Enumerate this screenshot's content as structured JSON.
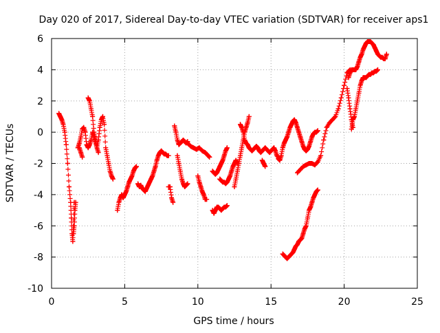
{
  "chart_data": {
    "type": "scatter",
    "title": "Day 020 of 2017, Sidereal Day-to-day VTEC variation (SDTVAR) for receiver aps1",
    "xlabel": "GPS time / hours",
    "ylabel": "SDTVAR / TECUs",
    "xlim": [
      0,
      25
    ],
    "ylim": [
      -10,
      6
    ],
    "xticks": [
      0,
      5,
      10,
      15,
      20,
      25
    ],
    "yticks": [
      -10,
      -8,
      -6,
      -4,
      -2,
      0,
      2,
      4,
      6
    ],
    "grid": true,
    "marker": "+",
    "color": "#ff0000",
    "series": [
      {
        "name": "s1",
        "x": [
          0.5,
          0.6,
          0.7,
          0.8,
          0.9,
          1.0,
          1.1,
          1.2,
          1.3,
          1.35,
          1.4,
          1.45,
          1.5,
          1.55
        ],
        "y": [
          1.2,
          1.0,
          0.8,
          0.5,
          0.0,
          -0.8,
          -2.0,
          -3.5,
          -4.5,
          -5.5,
          -6.5,
          -7.0,
          -6.0,
          -4.5
        ]
      },
      {
        "name": "s2",
        "x": [
          1.5,
          1.55,
          1.6,
          1.65
        ],
        "y": [
          -6.5,
          -6.0,
          -5.0,
          -4.5
        ]
      },
      {
        "name": "s3",
        "x": [
          1.8,
          1.9,
          2.0,
          2.1,
          2.2,
          2.3,
          2.4,
          2.5,
          2.6,
          2.7,
          2.8,
          2.9,
          3.0,
          3.1,
          3.2,
          3.3,
          3.4,
          3.5,
          3.6,
          3.7,
          3.8,
          3.9,
          4.0,
          4.1,
          4.2
        ],
        "y": [
          -1.0,
          -0.7,
          -0.3,
          0.2,
          0.3,
          0.0,
          -0.8,
          -1.0,
          -0.8,
          -0.5,
          0.0,
          -0.3,
          -0.6,
          -1.0,
          -0.5,
          0.3,
          0.8,
          1.0,
          0.5,
          -1.0,
          -1.5,
          -2.0,
          -2.5,
          -2.8,
          -3.0
        ]
      },
      {
        "name": "s4",
        "x": [
          1.9,
          2.0,
          2.1
        ],
        "y": [
          -1.0,
          -1.3,
          -1.6
        ]
      },
      {
        "name": "s5",
        "x": [
          2.5,
          2.6,
          2.7,
          2.8,
          2.9,
          3.0,
          3.1,
          3.2
        ],
        "y": [
          2.2,
          2.0,
          1.5,
          1.0,
          0.0,
          -0.5,
          -1.0,
          -1.3
        ]
      },
      {
        "name": "s6",
        "x": [
          4.5,
          4.6,
          4.7,
          4.8,
          4.9,
          5.0,
          5.1,
          5.2,
          5.3,
          5.4,
          5.5,
          5.6,
          5.7,
          5.8
        ],
        "y": [
          -5.0,
          -4.5,
          -4.2,
          -4.0,
          -4.2,
          -4.0,
          -3.8,
          -3.5,
          -3.2,
          -3.0,
          -2.8,
          -2.5,
          -2.3,
          -2.2
        ]
      },
      {
        "name": "s7",
        "x": [
          5.9,
          6.0,
          6.1,
          6.2,
          6.3,
          6.4,
          6.5,
          6.6,
          6.7,
          6.8,
          6.9,
          7.0,
          7.1,
          7.2,
          7.3,
          7.4,
          7.5,
          7.6,
          7.7,
          7.8,
          7.9,
          8.0
        ],
        "y": [
          -3.3,
          -3.5,
          -3.4,
          -3.6,
          -3.7,
          -3.8,
          -3.6,
          -3.4,
          -3.2,
          -3.0,
          -2.8,
          -2.5,
          -2.2,
          -1.8,
          -1.5,
          -1.3,
          -1.2,
          -1.3,
          -1.4,
          -1.4,
          -1.5,
          -1.5
        ]
      },
      {
        "name": "s8",
        "x": [
          8.0,
          8.1,
          8.2,
          8.3
        ],
        "y": [
          -3.5,
          -3.5,
          -4.2,
          -4.5
        ]
      },
      {
        "name": "s9",
        "x": [
          8.4,
          8.5,
          8.6,
          8.7,
          8.8,
          8.9,
          9.0,
          9.1,
          9.2,
          9.3
        ],
        "y": [
          0.4,
          0.0,
          -0.5,
          -0.8,
          -0.7,
          -0.6,
          -0.5,
          -0.6,
          -0.7,
          -0.6
        ]
      },
      {
        "name": "s10",
        "x": [
          8.6,
          8.7,
          8.8,
          8.9,
          9.0,
          9.1,
          9.2,
          9.3
        ],
        "y": [
          -1.5,
          -2.0,
          -2.5,
          -3.0,
          -3.3,
          -3.5,
          -3.4,
          -3.3
        ]
      },
      {
        "name": "s11",
        "x": [
          9.3,
          9.5,
          9.7,
          9.9,
          10.1,
          10.3,
          10.5,
          10.6,
          10.7,
          10.8
        ],
        "y": [
          -0.7,
          -0.9,
          -1.0,
          -1.1,
          -1.0,
          -1.2,
          -1.3,
          -1.4,
          -1.5,
          -1.6
        ]
      },
      {
        "name": "s12",
        "x": [
          10.0,
          10.1,
          10.2,
          10.3,
          10.4,
          10.5,
          10.6
        ],
        "y": [
          -2.8,
          -3.2,
          -3.5,
          -3.8,
          -4.0,
          -4.3,
          -4.3
        ]
      },
      {
        "name": "s13",
        "x": [
          11.0,
          11.1,
          11.2,
          11.3,
          11.4,
          11.5,
          11.6,
          11.7,
          11.8,
          11.9,
          12.0
        ],
        "y": [
          -5.0,
          -5.2,
          -5.0,
          -4.8,
          -4.8,
          -4.9,
          -5.0,
          -4.9,
          -4.8,
          -4.8,
          -4.7
        ]
      },
      {
        "name": "s14",
        "x": [
          11.5,
          11.6,
          11.7,
          11.8,
          11.9,
          12.0,
          12.1,
          12.2,
          12.3,
          12.4,
          12.5,
          12.6,
          12.7
        ],
        "y": [
          -3.0,
          -3.1,
          -3.2,
          -3.2,
          -3.3,
          -3.2,
          -3.0,
          -2.8,
          -2.5,
          -2.2,
          -2.0,
          -1.8,
          -2.0
        ]
      },
      {
        "name": "s15",
        "x": [
          11.0,
          11.1,
          11.2,
          11.3,
          11.4,
          11.5,
          11.6,
          11.7,
          11.8,
          11.9,
          12.0
        ],
        "y": [
          -2.5,
          -2.6,
          -2.7,
          -2.6,
          -2.4,
          -2.2,
          -2.0,
          -1.8,
          -1.5,
          -1.2,
          -1.0
        ]
      },
      {
        "name": "s16",
        "x": [
          12.5,
          12.6,
          12.7,
          12.8,
          12.9,
          13.0,
          13.1,
          13.2,
          13.3,
          13.4,
          13.5
        ],
        "y": [
          -3.5,
          -3.0,
          -2.5,
          -2.0,
          -1.5,
          -1.0,
          -0.5,
          0.0,
          0.3,
          0.6,
          1.0
        ]
      },
      {
        "name": "s17",
        "x": [
          12.9,
          13.0,
          13.1,
          13.2,
          13.3,
          13.4,
          13.5,
          13.6,
          13.7,
          13.8,
          13.9,
          14.0,
          14.1,
          14.2,
          14.3,
          14.4,
          14.5,
          14.6,
          14.7,
          14.8,
          14.9,
          15.0,
          15.1,
          15.2,
          15.3,
          15.4,
          15.5
        ],
        "y": [
          0.5,
          0.3,
          0.0,
          -0.5,
          -0.7,
          -0.8,
          -1.0,
          -1.1,
          -1.2,
          -1.1,
          -1.0,
          -0.9,
          -1.0,
          -1.2,
          -1.3,
          -1.2,
          -1.1,
          -1.0,
          -1.1,
          -1.2,
          -1.3,
          -1.2,
          -1.1,
          -1.0,
          -1.2,
          -1.5,
          -1.6
        ]
      },
      {
        "name": "s18",
        "x": [
          14.4,
          14.5,
          14.6
        ],
        "y": [
          -1.8,
          -2.0,
          -2.2
        ]
      },
      {
        "name": "s19",
        "x": [
          15.5,
          15.6,
          15.7,
          15.8,
          15.9,
          16.0,
          16.1,
          16.2,
          16.3,
          16.4,
          16.5,
          16.6,
          16.7,
          16.8,
          16.9,
          17.0,
          17.1,
          17.2,
          17.3,
          17.4,
          17.5,
          17.6,
          17.7,
          17.8,
          17.9,
          18.0,
          18.1,
          18.2
        ],
        "y": [
          -1.7,
          -1.8,
          -1.5,
          -1.0,
          -0.7,
          -0.5,
          -0.3,
          0.0,
          0.3,
          0.5,
          0.7,
          0.8,
          0.6,
          0.3,
          0.0,
          -0.3,
          -0.6,
          -0.9,
          -1.1,
          -1.2,
          -1.1,
          -0.9,
          -0.6,
          -0.3,
          -0.1,
          0.0,
          0.0,
          0.1
        ]
      },
      {
        "name": "s20",
        "x": [
          16.8,
          17.0,
          17.2,
          17.4,
          17.6,
          17.8,
          18.0,
          18.2,
          18.4,
          18.6,
          18.8,
          19.0,
          19.2,
          19.4,
          19.6,
          19.8,
          20.0,
          20.2,
          20.4
        ],
        "y": [
          -2.6,
          -2.4,
          -2.2,
          -2.1,
          -2.0,
          -2.0,
          -2.1,
          -1.9,
          -1.5,
          -0.5,
          0.3,
          0.6,
          0.8,
          1.0,
          1.5,
          2.2,
          3.0,
          3.8,
          4.0
        ]
      },
      {
        "name": "s21",
        "x": [
          15.8,
          15.9,
          16.0,
          16.1,
          16.2,
          16.3,
          16.4,
          16.5,
          16.6,
          16.7,
          16.8,
          16.9,
          17.0,
          17.1,
          17.2,
          17.3,
          17.4,
          17.5,
          17.6,
          17.7,
          17.8,
          17.9,
          18.0,
          18.1,
          18.2
        ],
        "y": [
          -7.8,
          -7.9,
          -8.0,
          -8.1,
          -8.0,
          -7.9,
          -7.8,
          -7.7,
          -7.5,
          -7.3,
          -7.2,
          -7.0,
          -6.9,
          -6.8,
          -6.5,
          -6.2,
          -6.0,
          -5.5,
          -5.0,
          -4.8,
          -4.5,
          -4.2,
          -4.0,
          -3.8,
          -3.7
        ]
      },
      {
        "name": "s22",
        "x": [
          20.3,
          20.4,
          20.5,
          20.6,
          20.7,
          20.8,
          20.9,
          21.0,
          21.1,
          21.2,
          21.3,
          21.4,
          21.5,
          21.6,
          21.7,
          21.8,
          21.9,
          22.0,
          22.1,
          22.2,
          22.3,
          22.4,
          22.5,
          22.6,
          22.7,
          22.8,
          22.9
        ],
        "y": [
          3.5,
          3.8,
          4.0,
          4.0,
          4.0,
          4.0,
          4.2,
          4.5,
          4.8,
          5.0,
          5.3,
          5.5,
          5.7,
          5.8,
          5.8,
          5.8,
          5.7,
          5.6,
          5.4,
          5.2,
          5.0,
          4.9,
          4.8,
          4.8,
          4.7,
          4.7,
          5.0
        ]
      },
      {
        "name": "s23",
        "x": [
          20.5,
          20.6,
          20.7,
          20.8,
          20.9,
          21.0,
          21.1,
          21.2,
          21.3,
          21.4,
          21.5,
          21.6,
          21.7,
          21.8,
          21.9,
          22.0,
          22.1,
          22.2,
          22.3
        ],
        "y": [
          0.2,
          0.8,
          1.0,
          1.5,
          2.0,
          2.5,
          3.0,
          3.3,
          3.5,
          3.5,
          3.5,
          3.6,
          3.7,
          3.7,
          3.8,
          3.8,
          3.9,
          3.9,
          4.0
        ]
      },
      {
        "name": "s24",
        "x": [
          20.2,
          20.3,
          20.4,
          20.5,
          20.6
        ],
        "y": [
          2.8,
          2.2,
          1.5,
          0.8,
          0.3
        ]
      }
    ]
  }
}
